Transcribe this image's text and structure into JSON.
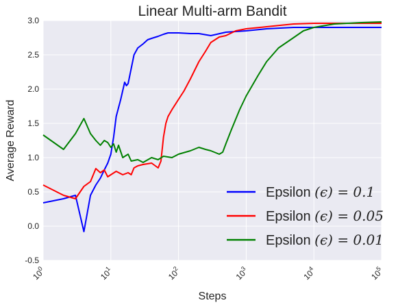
{
  "chart_data": {
    "type": "line",
    "title": "Linear Multi-arm Bandit",
    "xlabel": "Steps",
    "ylabel": "Average Reward",
    "xscale": "log",
    "xlim": [
      1,
      100000
    ],
    "ylim": [
      -0.5,
      3.0
    ],
    "x_ticks": [
      {
        "value": 1,
        "base": "10",
        "exp": "0"
      },
      {
        "value": 10,
        "base": "10",
        "exp": "1"
      },
      {
        "value": 100,
        "base": "10",
        "exp": "2"
      },
      {
        "value": 1000,
        "base": "10",
        "exp": "3"
      },
      {
        "value": 10000,
        "base": "10",
        "exp": "4"
      },
      {
        "value": 100000,
        "base": "10",
        "exp": "5"
      }
    ],
    "y_ticks": [
      "3.0",
      "2.5",
      "2.0",
      "1.5",
      "1.0",
      "0.5",
      "0.0",
      "-0.5"
    ],
    "grid": true,
    "legend_position": "bottom-right",
    "series": [
      {
        "name": "Epsilon (ϵ) = 0.1",
        "legend_prefix": "Epsilon ",
        "legend_math": "(ϵ) = 0.1",
        "color": "#0000ff",
        "points": [
          [
            1,
            0.34
          ],
          [
            2,
            0.4
          ],
          [
            3,
            0.45
          ],
          [
            4,
            -0.08
          ],
          [
            5,
            0.45
          ],
          [
            6,
            0.6
          ],
          [
            7,
            0.7
          ],
          [
            8,
            0.82
          ],
          [
            9,
            0.92
          ],
          [
            10,
            1.05
          ],
          [
            11,
            1.3
          ],
          [
            12,
            1.6
          ],
          [
            14,
            1.85
          ],
          [
            16,
            2.1
          ],
          [
            17,
            2.05
          ],
          [
            18,
            2.08
          ],
          [
            20,
            2.3
          ],
          [
            22,
            2.5
          ],
          [
            25,
            2.6
          ],
          [
            30,
            2.66
          ],
          [
            35,
            2.72
          ],
          [
            40,
            2.74
          ],
          [
            50,
            2.77
          ],
          [
            60,
            2.8
          ],
          [
            70,
            2.82
          ],
          [
            80,
            2.82
          ],
          [
            100,
            2.82
          ],
          [
            150,
            2.81
          ],
          [
            200,
            2.81
          ],
          [
            300,
            2.78
          ],
          [
            500,
            2.83
          ],
          [
            700,
            2.84
          ],
          [
            1000,
            2.85
          ],
          [
            2000,
            2.88
          ],
          [
            5000,
            2.9
          ],
          [
            10000,
            2.9
          ],
          [
            100000,
            2.9
          ]
        ]
      },
      {
        "name": "Epsilon (ϵ) = 0.05",
        "legend_prefix": "Epsilon ",
        "legend_math": "(ϵ) = 0.05",
        "color": "#ff0000",
        "points": [
          [
            1,
            0.6
          ],
          [
            2,
            0.45
          ],
          [
            3,
            0.4
          ],
          [
            4,
            0.58
          ],
          [
            5,
            0.65
          ],
          [
            6,
            0.84
          ],
          [
            7,
            0.78
          ],
          [
            8,
            0.82
          ],
          [
            9,
            0.72
          ],
          [
            10,
            0.75
          ],
          [
            12,
            0.8
          ],
          [
            15,
            0.75
          ],
          [
            18,
            0.78
          ],
          [
            20,
            0.75
          ],
          [
            22,
            0.85
          ],
          [
            25,
            0.88
          ],
          [
            30,
            0.9
          ],
          [
            40,
            0.92
          ],
          [
            50,
            0.85
          ],
          [
            55,
            0.95
          ],
          [
            60,
            1.3
          ],
          [
            65,
            1.5
          ],
          [
            70,
            1.6
          ],
          [
            80,
            1.7
          ],
          [
            100,
            1.85
          ],
          [
            120,
            1.97
          ],
          [
            150,
            2.15
          ],
          [
            200,
            2.4
          ],
          [
            250,
            2.55
          ],
          [
            300,
            2.68
          ],
          [
            400,
            2.76
          ],
          [
            500,
            2.78
          ],
          [
            700,
            2.85
          ],
          [
            1000,
            2.88
          ],
          [
            2000,
            2.91
          ],
          [
            5000,
            2.95
          ],
          [
            10000,
            2.96
          ],
          [
            100000,
            2.96
          ]
        ]
      },
      {
        "name": "Epsilon (ϵ) = 0.01",
        "legend_prefix": "Epsilon ",
        "legend_math": "(ϵ) = 0.01",
        "color": "#008000",
        "points": [
          [
            1,
            1.33
          ],
          [
            2,
            1.12
          ],
          [
            3,
            1.35
          ],
          [
            4,
            1.57
          ],
          [
            5,
            1.35
          ],
          [
            6,
            1.25
          ],
          [
            7,
            1.18
          ],
          [
            8,
            1.25
          ],
          [
            9,
            1.22
          ],
          [
            10,
            1.15
          ],
          [
            11,
            1.2
          ],
          [
            12,
            1.08
          ],
          [
            13,
            1.18
          ],
          [
            15,
            1.0
          ],
          [
            18,
            1.05
          ],
          [
            20,
            0.95
          ],
          [
            25,
            0.97
          ],
          [
            30,
            0.93
          ],
          [
            40,
            1.0
          ],
          [
            50,
            0.97
          ],
          [
            60,
            1.02
          ],
          [
            80,
            1.0
          ],
          [
            100,
            1.05
          ],
          [
            150,
            1.1
          ],
          [
            200,
            1.15
          ],
          [
            250,
            1.12
          ],
          [
            300,
            1.1
          ],
          [
            400,
            1.05
          ],
          [
            450,
            1.08
          ],
          [
            500,
            1.2
          ],
          [
            600,
            1.4
          ],
          [
            800,
            1.7
          ],
          [
            1000,
            1.9
          ],
          [
            1500,
            2.2
          ],
          [
            2000,
            2.4
          ],
          [
            3000,
            2.6
          ],
          [
            5000,
            2.75
          ],
          [
            7000,
            2.85
          ],
          [
            10000,
            2.9
          ],
          [
            20000,
            2.95
          ],
          [
            50000,
            2.97
          ],
          [
            100000,
            2.98
          ]
        ]
      }
    ]
  }
}
